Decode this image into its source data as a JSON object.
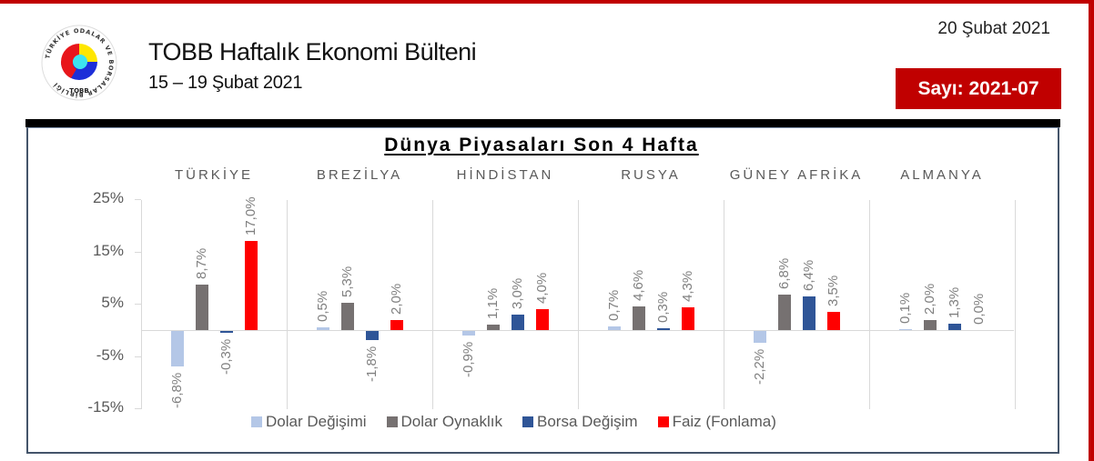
{
  "header": {
    "title": "TOBB Haftalık Ekonomi Bülteni",
    "subtitle": "15 – 19 Şubat 2021",
    "date": "20 Şubat 2021",
    "issue": "Sayı: 2021-07",
    "logo_text": "TOBB",
    "logo_ring_text": "TÜRKİYE ODALAR VE BORSALAR BİRLİĞİ"
  },
  "colors": {
    "brand_red": "#c00000",
    "dolar_degisimi": "#b4c7e7",
    "dolar_oynaklik": "#767171",
    "borsa_degisim": "#2f5597",
    "faiz": "#ff0000",
    "axis_text": "#595959",
    "label_text": "#7f7f7f",
    "frame": "#44546a"
  },
  "chart_data": {
    "type": "bar",
    "title": "Dünya Piyasaları Son 4 Hafta",
    "xlabel": "",
    "ylabel": "",
    "ylim": [
      -15,
      25
    ],
    "yticks": [
      "25%",
      "15%",
      "5%",
      "-5%",
      "-15%"
    ],
    "grid": false,
    "legend_position": "bottom",
    "categories": [
      "TÜRKİYE",
      "BREZİLYA",
      "HİNDİSTAN",
      "RUSYA",
      "GÜNEY AFRİKA",
      "ALMANYA"
    ],
    "series": [
      {
        "name": "Dolar Değişimi",
        "color": "#b4c7e7",
        "values": [
          -6.8,
          0.5,
          -0.9,
          0.7,
          -2.2,
          0.1
        ],
        "labels": [
          "-6,8%",
          "0,5%",
          "-0,9%",
          "0,7%",
          "-2,2%",
          "0,1%"
        ]
      },
      {
        "name": "Dolar Oynaklık",
        "color": "#767171",
        "values": [
          8.7,
          5.3,
          1.1,
          4.6,
          6.8,
          2.0
        ],
        "labels": [
          "8,7%",
          "5,3%",
          "1,1%",
          "4,6%",
          "6,8%",
          "2,0%"
        ]
      },
      {
        "name": "Borsa Değişim",
        "color": "#2f5597",
        "values": [
          -0.3,
          -1.8,
          3.0,
          0.3,
          6.4,
          1.3
        ],
        "labels": [
          "-0,3%",
          "-1,8%",
          "3,0%",
          "0,3%",
          "6,4%",
          "1,3%"
        ]
      },
      {
        "name": "Faiz (Fonlama)",
        "color": "#ff0000",
        "values": [
          17.0,
          2.0,
          4.0,
          4.3,
          3.5,
          0.0
        ],
        "labels": [
          "17,0%",
          "2,0%",
          "4,0%",
          "4,3%",
          "3,5%",
          "0,0%"
        ]
      }
    ]
  }
}
